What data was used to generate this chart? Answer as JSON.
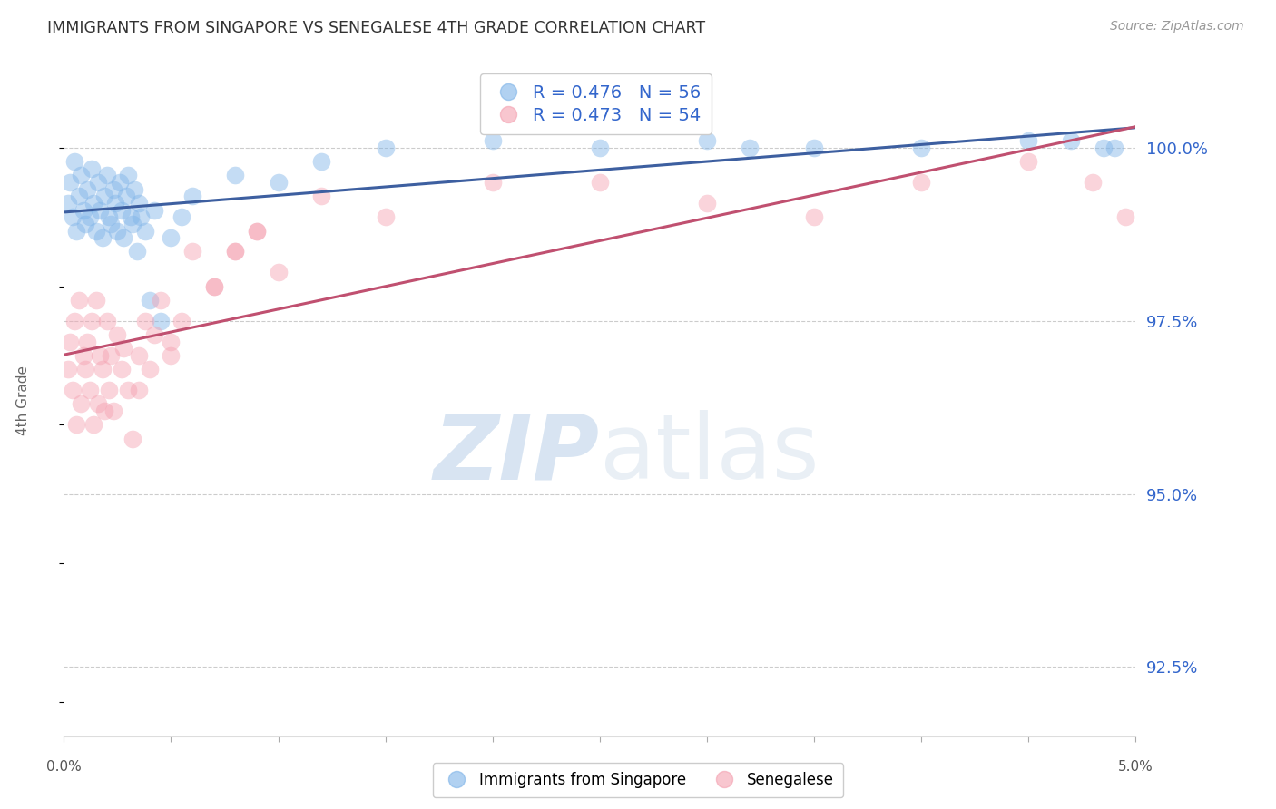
{
  "title": "IMMIGRANTS FROM SINGAPORE VS SENEGALESE 4TH GRADE CORRELATION CHART",
  "source_text": "Source: ZipAtlas.com",
  "ylabel": "4th Grade",
  "x_min": 0.0,
  "x_max": 5.0,
  "y_min": 91.5,
  "y_max": 101.2,
  "yticks": [
    92.5,
    95.0,
    97.5,
    100.0
  ],
  "blue_R": 0.476,
  "blue_N": 56,
  "pink_R": 0.473,
  "pink_N": 54,
  "blue_color": "#7EB3E8",
  "pink_color": "#F4A0B0",
  "blue_line_color": "#3D5FA0",
  "pink_line_color": "#C05070",
  "legend_blue_label": "Immigrants from Singapore",
  "legend_pink_label": "Senegalese",
  "watermark_zip": "ZIP",
  "watermark_atlas": "atlas",
  "blue_x": [
    0.02,
    0.03,
    0.04,
    0.05,
    0.06,
    0.07,
    0.08,
    0.09,
    0.1,
    0.11,
    0.12,
    0.13,
    0.14,
    0.15,
    0.16,
    0.17,
    0.18,
    0.19,
    0.2,
    0.21,
    0.22,
    0.23,
    0.24,
    0.25,
    0.26,
    0.27,
    0.28,
    0.29,
    0.3,
    0.31,
    0.32,
    0.33,
    0.34,
    0.35,
    0.36,
    0.38,
    0.4,
    0.42,
    0.45,
    0.5,
    0.55,
    0.6,
    0.8,
    1.0,
    1.2,
    1.5,
    2.0,
    2.5,
    3.0,
    3.2,
    3.5,
    4.0,
    4.5,
    4.7,
    4.85,
    4.9
  ],
  "blue_y": [
    99.2,
    99.5,
    99.0,
    99.8,
    98.8,
    99.3,
    99.6,
    99.1,
    98.9,
    99.4,
    99.0,
    99.7,
    99.2,
    98.8,
    99.5,
    99.1,
    98.7,
    99.3,
    99.6,
    99.0,
    98.9,
    99.4,
    99.2,
    98.8,
    99.5,
    99.1,
    98.7,
    99.3,
    99.6,
    99.0,
    98.9,
    99.4,
    98.5,
    99.2,
    99.0,
    98.8,
    97.8,
    99.1,
    97.5,
    98.7,
    99.0,
    99.3,
    99.6,
    99.5,
    99.8,
    100.0,
    100.1,
    100.0,
    100.1,
    100.0,
    100.0,
    100.0,
    100.1,
    100.1,
    100.0,
    100.0
  ],
  "pink_x": [
    0.02,
    0.03,
    0.04,
    0.05,
    0.06,
    0.07,
    0.08,
    0.09,
    0.1,
    0.11,
    0.12,
    0.13,
    0.14,
    0.15,
    0.16,
    0.17,
    0.18,
    0.19,
    0.2,
    0.21,
    0.22,
    0.23,
    0.25,
    0.27,
    0.28,
    0.3,
    0.32,
    0.35,
    0.38,
    0.4,
    0.42,
    0.45,
    0.5,
    0.55,
    0.6,
    0.7,
    0.8,
    0.9,
    1.0,
    1.5,
    2.0,
    2.5,
    3.0,
    3.5,
    4.0,
    4.5,
    4.8,
    4.95,
    0.8,
    1.2,
    0.35,
    0.5,
    0.7,
    0.9
  ],
  "pink_y": [
    96.8,
    97.2,
    96.5,
    97.5,
    96.0,
    97.8,
    96.3,
    97.0,
    96.8,
    97.2,
    96.5,
    97.5,
    96.0,
    97.8,
    96.3,
    97.0,
    96.8,
    96.2,
    97.5,
    96.5,
    97.0,
    96.2,
    97.3,
    96.8,
    97.1,
    96.5,
    95.8,
    97.0,
    97.5,
    96.8,
    97.3,
    97.8,
    97.0,
    97.5,
    98.5,
    98.0,
    98.5,
    98.8,
    98.2,
    99.0,
    99.5,
    99.5,
    99.2,
    99.0,
    99.5,
    99.8,
    99.5,
    99.0,
    98.5,
    99.3,
    96.5,
    97.2,
    98.0,
    98.8
  ]
}
